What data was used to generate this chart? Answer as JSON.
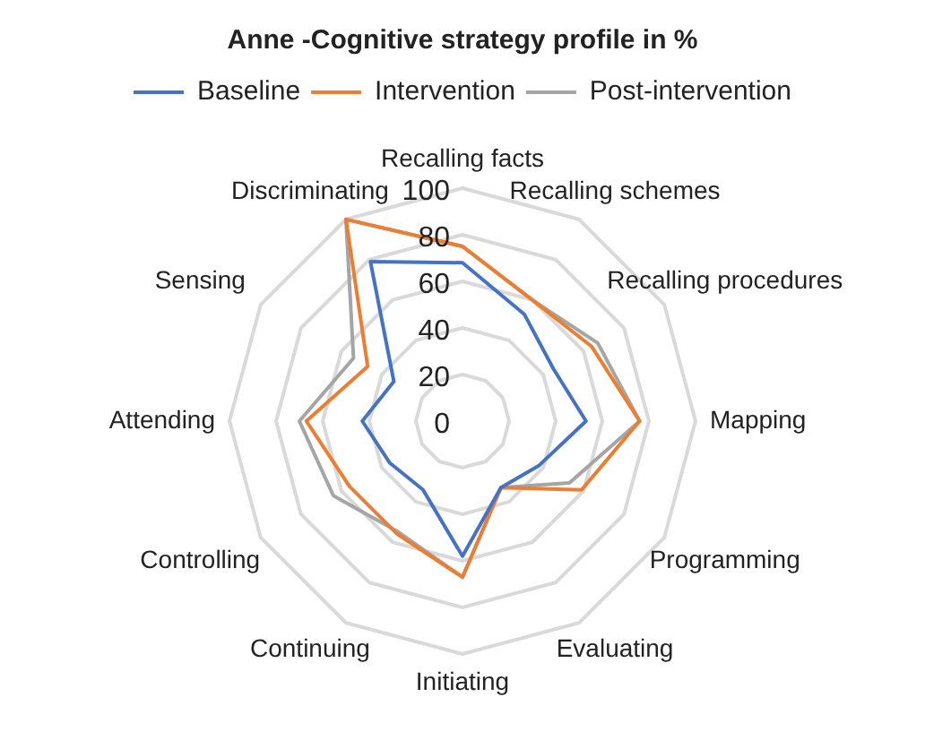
{
  "chart_data": {
    "type": "radar",
    "title": "Anne -Cognitive strategy profile in %",
    "categories": [
      "Recalling facts",
      "Recalling schemes",
      "Recalling procedures",
      "Mapping",
      "Programming",
      "Evaluating",
      "Initiating",
      "Continuing",
      "Controlling",
      "Attending",
      "Sensing",
      "Discriminating"
    ],
    "series": [
      {
        "name": "Baseline",
        "color": "#4472c4",
        "values": [
          68,
          53,
          45,
          53,
          38,
          33,
          58,
          34,
          36,
          43,
          34,
          79
        ]
      },
      {
        "name": "Intervention",
        "color": "#ed7d31",
        "values": [
          75,
          60,
          64,
          76,
          59,
          33,
          67,
          56,
          56,
          67,
          47,
          100
        ]
      },
      {
        "name": "Post-intervention",
        "color": "#a5a5a5",
        "values": [
          75,
          60,
          67,
          76,
          53,
          33,
          67,
          55,
          64,
          70,
          54,
          100
        ]
      }
    ],
    "ylim": [
      0,
      100
    ],
    "yticks": [
      0,
      20,
      40,
      60,
      80,
      100
    ],
    "grid": true,
    "legend": "top",
    "marker": "none"
  }
}
